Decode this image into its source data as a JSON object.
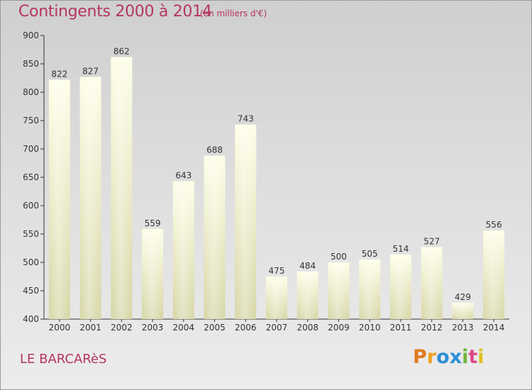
{
  "header": {
    "title": "Contingents 2000 à 2014",
    "subtitle": "(en milliers d'€)"
  },
  "footer": {
    "town": "LE BARCARèS",
    "logo_text": "Proxiti"
  },
  "colors": {
    "title": "#b5365e",
    "bar_top": "#fefee8",
    "bar_bottom": "#d8d8a8",
    "axis": "#333333"
  },
  "chart_data": {
    "type": "bar",
    "title": "Contingents 2000 à 2014",
    "subtitle": "(en milliers d'€)",
    "xlabel": "",
    "ylabel": "",
    "categories": [
      "2000",
      "2001",
      "2002",
      "2003",
      "2004",
      "2005",
      "2006",
      "2007",
      "2008",
      "2009",
      "2010",
      "2011",
      "2012",
      "2013",
      "2014"
    ],
    "values": [
      822,
      827,
      862,
      559,
      643,
      688,
      743,
      475,
      484,
      500,
      505,
      514,
      527,
      429,
      556
    ],
    "ylim": [
      400,
      900
    ],
    "yticks": [
      400,
      450,
      500,
      550,
      600,
      650,
      700,
      750,
      800,
      850,
      900
    ],
    "grid": false,
    "legend": "none"
  }
}
